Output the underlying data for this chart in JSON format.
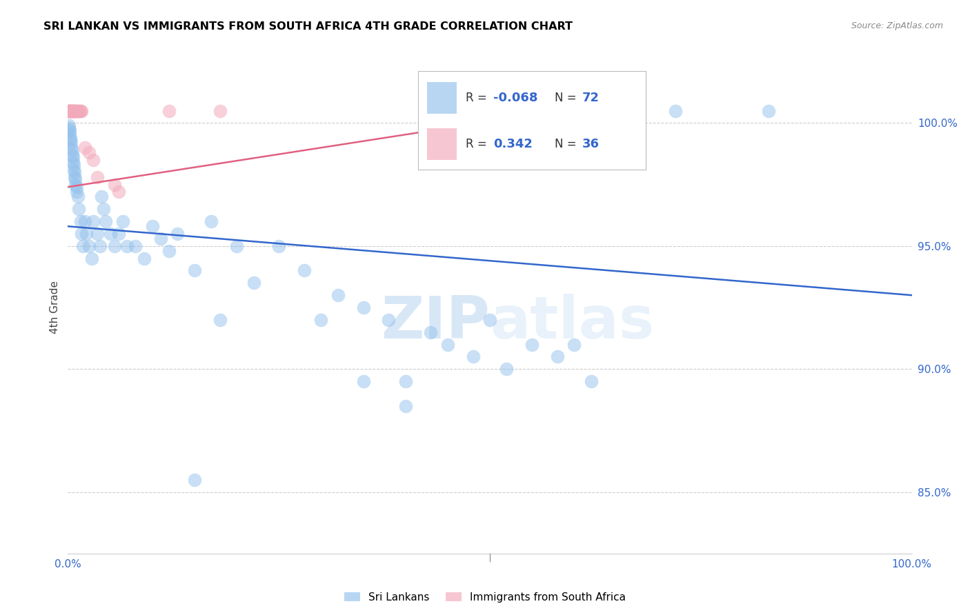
{
  "title": "SRI LANKAN VS IMMIGRANTS FROM SOUTH AFRICA 4TH GRADE CORRELATION CHART",
  "source": "Source: ZipAtlas.com",
  "ylabel": "4th Grade",
  "ytick_labels": [
    "85.0%",
    "90.0%",
    "95.0%",
    "100.0%"
  ],
  "ytick_values": [
    0.85,
    0.9,
    0.95,
    1.0
  ],
  "legend_blue_r": "-0.068",
  "legend_blue_n": "72",
  "legend_pink_r": "0.342",
  "legend_pink_n": "36",
  "legend_label_blue": "Sri Lankans",
  "legend_label_pink": "Immigrants from South Africa",
  "blue_color": "#92C0EC",
  "pink_color": "#F2AABB",
  "blue_line_color": "#3366CC",
  "pink_line_color": "#E06080",
  "watermark_zip": "ZIP",
  "watermark_atlas": "atlas",
  "blue_scatter_x": [
    0.001,
    0.001,
    0.002,
    0.002,
    0.003,
    0.003,
    0.004,
    0.004,
    0.005,
    0.005,
    0.006,
    0.006,
    0.007,
    0.007,
    0.008,
    0.008,
    0.009,
    0.009,
    0.01,
    0.01,
    0.012,
    0.013,
    0.015,
    0.016,
    0.018,
    0.02,
    0.022,
    0.025,
    0.028,
    0.03,
    0.035,
    0.038,
    0.04,
    0.042,
    0.045,
    0.05,
    0.055,
    0.06,
    0.065,
    0.07,
    0.08,
    0.09,
    0.1,
    0.11,
    0.12,
    0.13,
    0.15,
    0.17,
    0.2,
    0.22,
    0.25,
    0.28,
    0.3,
    0.32,
    0.35,
    0.38,
    0.4,
    0.43,
    0.45,
    0.48,
    0.5,
    0.52,
    0.55,
    0.58,
    0.6,
    0.62,
    0.15,
    0.18,
    0.72,
    0.83,
    0.35,
    0.4
  ],
  "blue_scatter_y": [
    0.999,
    0.998,
    0.997,
    0.996,
    0.994,
    0.993,
    0.992,
    0.99,
    0.989,
    0.987,
    0.986,
    0.984,
    0.983,
    0.981,
    0.98,
    0.978,
    0.977,
    0.975,
    0.974,
    0.972,
    0.97,
    0.965,
    0.96,
    0.955,
    0.95,
    0.96,
    0.955,
    0.95,
    0.945,
    0.96,
    0.955,
    0.95,
    0.97,
    0.965,
    0.96,
    0.955,
    0.95,
    0.955,
    0.96,
    0.95,
    0.95,
    0.945,
    0.958,
    0.953,
    0.948,
    0.955,
    0.94,
    0.96,
    0.95,
    0.935,
    0.95,
    0.94,
    0.92,
    0.93,
    0.925,
    0.92,
    0.885,
    0.915,
    0.91,
    0.905,
    0.92,
    0.9,
    0.91,
    0.905,
    0.91,
    0.895,
    0.855,
    0.92,
    1.005,
    1.005,
    0.895,
    0.895
  ],
  "pink_scatter_x": [
    0.001,
    0.001,
    0.001,
    0.002,
    0.002,
    0.002,
    0.003,
    0.003,
    0.003,
    0.004,
    0.004,
    0.005,
    0.005,
    0.006,
    0.006,
    0.007,
    0.007,
    0.008,
    0.008,
    0.009,
    0.01,
    0.01,
    0.011,
    0.012,
    0.013,
    0.014,
    0.015,
    0.016,
    0.02,
    0.025,
    0.03,
    0.035,
    0.055,
    0.06,
    0.12,
    0.18
  ],
  "pink_scatter_y": [
    1.005,
    1.005,
    1.005,
    1.005,
    1.005,
    1.005,
    1.005,
    1.005,
    1.005,
    1.005,
    1.005,
    1.005,
    1.005,
    1.005,
    1.005,
    1.005,
    1.005,
    1.005,
    1.005,
    1.005,
    1.005,
    1.005,
    1.005,
    1.005,
    1.005,
    1.005,
    1.005,
    1.005,
    0.99,
    0.988,
    0.985,
    0.978,
    0.975,
    0.972,
    1.005,
    1.005
  ],
  "xlim": [
    0.0,
    1.0
  ],
  "ylim": [
    0.825,
    1.025
  ]
}
